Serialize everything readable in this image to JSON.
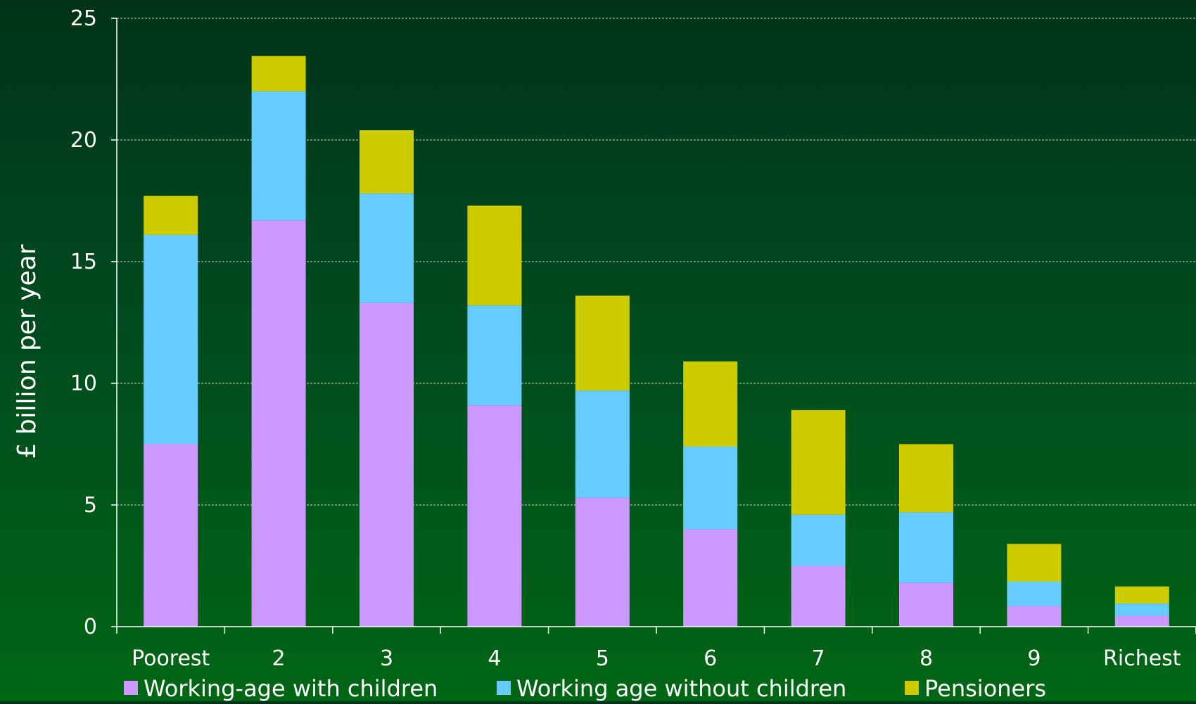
{
  "chart_data": {
    "type": "bar",
    "stacked": true,
    "title": "",
    "xlabel": "",
    "ylabel": "£ billion per year",
    "ylim": [
      0,
      25
    ],
    "yticks": [
      0,
      5,
      10,
      15,
      20,
      25
    ],
    "grid": true,
    "legend_position": "bottom",
    "categories": [
      "Poorest",
      "2",
      "3",
      "4",
      "5",
      "6",
      "7",
      "8",
      "9",
      "Richest"
    ],
    "series": [
      {
        "name": "Working-age with children",
        "color": "#cc99ff",
        "values": [
          7.5,
          16.7,
          13.3,
          9.1,
          5.3,
          4.0,
          2.5,
          1.8,
          0.85,
          0.45
        ]
      },
      {
        "name": "Working age without children",
        "color": "#66ccff",
        "values": [
          8.6,
          5.3,
          4.5,
          4.1,
          4.4,
          3.4,
          2.1,
          2.9,
          1.0,
          0.5
        ]
      },
      {
        "name": "Pensioners",
        "color": "#cccc00",
        "values": [
          1.6,
          1.45,
          2.6,
          4.1,
          3.9,
          3.5,
          4.3,
          2.8,
          1.55,
          0.7
        ]
      }
    ]
  }
}
